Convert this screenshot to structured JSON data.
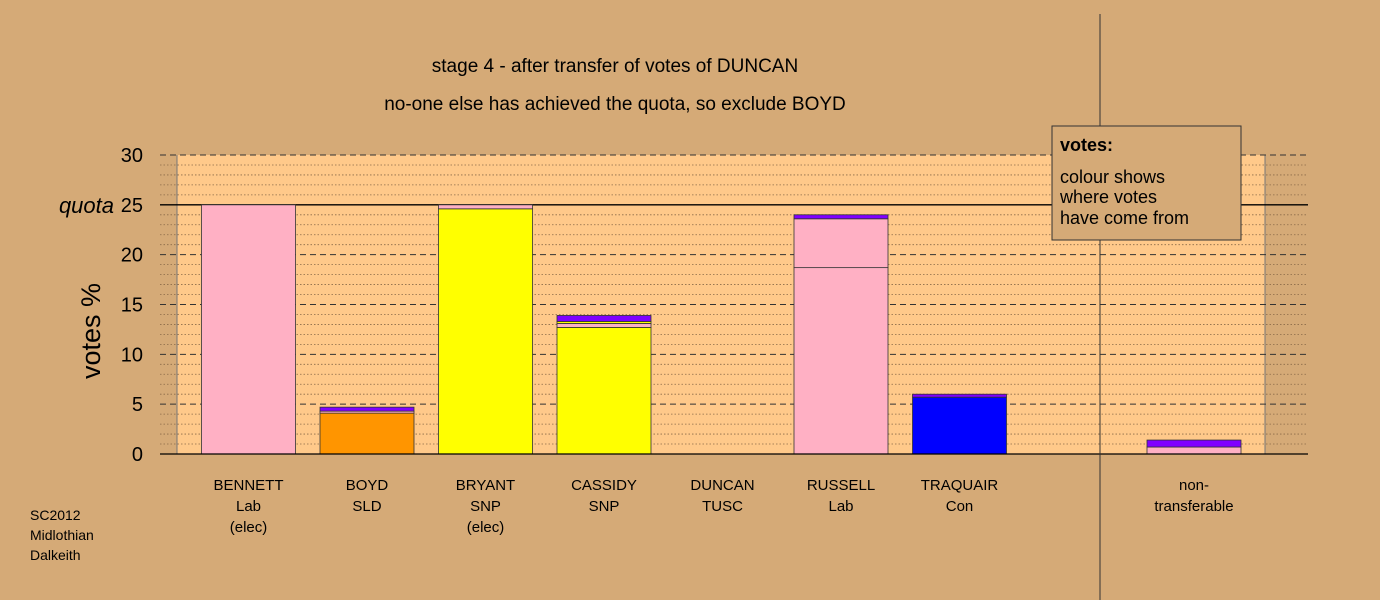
{
  "colors": {
    "background": "#D5AA77",
    "plot_area": "#FFC98A",
    "Lab": "#FFB0C4",
    "SLD": "#FF9500",
    "SNP": "#FFFF00",
    "Con": "#0000FF",
    "TUSC": "#D00000",
    "transfer": "#8000FF"
  },
  "chart_data": {
    "type": "bar",
    "stacked": true,
    "title": "stage 4 - after transfer of votes of DUNCAN",
    "subtitle": "no-one else has achieved the quota, so exclude BOYD",
    "ylabel": "votes %",
    "ylim": [
      0,
      30
    ],
    "yticks": [
      "0",
      "5",
      "10",
      "15",
      "20",
      "25",
      "30"
    ],
    "quota": 25,
    "quota_label": "quota",
    "grid": true,
    "legend": {
      "title": "votes:",
      "lines": [
        "colour shows",
        "where votes",
        "have come from"
      ],
      "position": "top-right"
    },
    "region_label": [
      "SC2012",
      "Midlothian",
      "Dalkeith"
    ],
    "bars": [
      {
        "label": [
          "BENNETT",
          "Lab",
          "(elec)"
        ],
        "segments": [
          {
            "value": 25.0,
            "color": "#FFB0C4"
          }
        ]
      },
      {
        "label": [
          "BOYD",
          "SLD"
        ],
        "segments": [
          {
            "value": 4.1,
            "color": "#FF9500"
          },
          {
            "value": 0.2,
            "color": "#FFB0C4"
          },
          {
            "value": 0.4,
            "color": "#8000FF"
          }
        ]
      },
      {
        "label": [
          "BRYANT",
          "SNP",
          "(elec)"
        ],
        "segments": [
          {
            "value": 24.6,
            "color": "#FFFF00"
          },
          {
            "value": 0.4,
            "color": "#FFB0C4"
          }
        ]
      },
      {
        "label": [
          "CASSIDY",
          "SNP"
        ],
        "segments": [
          {
            "value": 12.7,
            "color": "#FFFF00"
          },
          {
            "value": 0.4,
            "color": "#FFB0C4"
          },
          {
            "value": 0.2,
            "color": "#FFFF00"
          },
          {
            "value": 0.6,
            "color": "#8000FF"
          }
        ]
      },
      {
        "label": [
          "DUNCAN",
          "TUSC"
        ],
        "segments": []
      },
      {
        "label": [
          "RUSSELL",
          "Lab"
        ],
        "segments": [
          {
            "value": 18.7,
            "color": "#FFB0C4"
          },
          {
            "value": 4.9,
            "color": "#FFB0C4"
          },
          {
            "value": 0.4,
            "color": "#8000FF"
          }
        ]
      },
      {
        "label": [
          "TRAQUAIR",
          "Con"
        ],
        "segments": [
          {
            "value": 5.7,
            "color": "#0000FF"
          },
          {
            "value": 0.3,
            "color": "#8000FF"
          }
        ]
      }
    ],
    "nontransferable": {
      "label": [
        "non-",
        "transferable"
      ],
      "segments": [
        {
          "value": 0.7,
          "color": "#FFB0C4"
        },
        {
          "value": 0.7,
          "color": "#8000FF"
        }
      ]
    }
  }
}
